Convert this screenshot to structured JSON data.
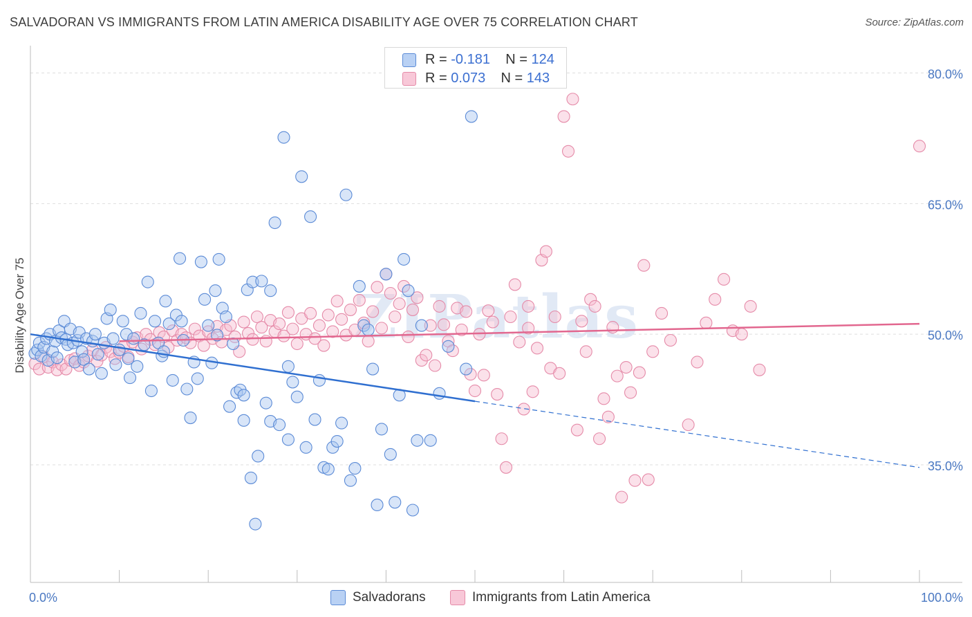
{
  "title": "SALVADORAN VS IMMIGRANTS FROM LATIN AMERICA DISABILITY AGE OVER 75 CORRELATION CHART",
  "source": "Source: ZipAtlas.com",
  "watermark": "ZIPatlas",
  "legend_top": {
    "rows": [
      {
        "r_label": "R = ",
        "r_value": "-0.181",
        "n_label": "N = ",
        "n_value": "124"
      },
      {
        "r_label": "R = ",
        "r_value": "0.073",
        "n_label": "N = ",
        "n_value": "143"
      }
    ]
  },
  "legend_bottom": [
    "Salvadorans",
    "Immigrants from Latin America"
  ],
  "colors": {
    "blue_fill": "#a9c6f0",
    "blue_stroke": "#5a8ad6",
    "blue_line": "#2f6fd0",
    "pink_fill": "#f6bcd0",
    "pink_stroke": "#e58aa8",
    "pink_line": "#e2678f",
    "grid": "#dddddd",
    "axis": "#bdbdbd",
    "tick_text": "#4a78c2"
  },
  "chart_data": {
    "type": "scatter",
    "title": "SALVADORAN VS IMMIGRANTS FROM LATIN AMERICA DISABILITY AGE OVER 75 CORRELATION CHART",
    "xlabel": "",
    "ylabel": "Disability Age Over 75",
    "xlim": [
      0,
      100
    ],
    "ylim": [
      21.5,
      82.5
    ],
    "x_tick_labels": [
      "0.0%",
      "100.0%"
    ],
    "y_ticks": [
      35,
      50,
      65,
      80
    ],
    "y_tick_labels": [
      "35.0%",
      "50.0%",
      "65.0%",
      "80.0%"
    ],
    "legend": [
      "Salvadorans",
      "Immigrants from Latin America"
    ],
    "series": [
      {
        "name": "Salvadorans",
        "R": -0.181,
        "N": 124,
        "trend": {
          "x_start": 0,
          "y_start": 50.0,
          "x_end": 50,
          "y_end": 42.3,
          "dashed_to_x": 100,
          "dashed_to_y": 34.7
        },
        "points": [
          [
            0.5,
            47.8
          ],
          [
            0.8,
            48.2
          ],
          [
            1.0,
            49.0
          ],
          [
            1.2,
            47.5
          ],
          [
            1.5,
            48.5
          ],
          [
            1.8,
            49.5
          ],
          [
            2.0,
            47.0
          ],
          [
            2.2,
            50.0
          ],
          [
            2.5,
            48.0
          ],
          [
            2.8,
            49.2
          ],
          [
            3.0,
            47.3
          ],
          [
            3.2,
            50.4
          ],
          [
            3.5,
            49.6
          ],
          [
            3.8,
            51.5
          ],
          [
            4.0,
            49.4
          ],
          [
            4.2,
            48.8
          ],
          [
            4.5,
            50.6
          ],
          [
            4.8,
            49.0
          ],
          [
            5.0,
            46.8
          ],
          [
            5.3,
            49.3
          ],
          [
            5.5,
            50.2
          ],
          [
            5.8,
            48.0
          ],
          [
            6.0,
            47.1
          ],
          [
            6.3,
            49.5
          ],
          [
            6.6,
            46.0
          ],
          [
            7.0,
            49.2
          ],
          [
            7.3,
            50.0
          ],
          [
            7.6,
            47.7
          ],
          [
            8.0,
            45.5
          ],
          [
            8.3,
            49.0
          ],
          [
            8.6,
            51.8
          ],
          [
            9.0,
            52.8
          ],
          [
            9.3,
            49.5
          ],
          [
            9.6,
            46.5
          ],
          [
            10.0,
            48.2
          ],
          [
            10.4,
            51.5
          ],
          [
            10.8,
            50.0
          ],
          [
            11.2,
            45.0
          ],
          [
            11.6,
            49.5
          ],
          [
            12.0,
            46.3
          ],
          [
            12.4,
            52.4
          ],
          [
            12.8,
            48.8
          ],
          [
            13.2,
            56.0
          ],
          [
            13.6,
            43.5
          ],
          [
            14.0,
            51.5
          ],
          [
            14.4,
            49.0
          ],
          [
            14.8,
            47.5
          ],
          [
            15.2,
            53.8
          ],
          [
            15.6,
            51.2
          ],
          [
            16.0,
            44.7
          ],
          [
            16.4,
            52.2
          ],
          [
            16.8,
            58.7
          ],
          [
            17.2,
            49.3
          ],
          [
            17.6,
            43.7
          ],
          [
            18.0,
            40.4
          ],
          [
            18.4,
            46.8
          ],
          [
            18.8,
            44.9
          ],
          [
            19.2,
            58.3
          ],
          [
            19.6,
            54.0
          ],
          [
            20.0,
            51.0
          ],
          [
            20.4,
            46.7
          ],
          [
            20.8,
            55.0
          ],
          [
            21.2,
            58.6
          ],
          [
            21.6,
            53.0
          ],
          [
            22.0,
            52.0
          ],
          [
            22.4,
            41.7
          ],
          [
            22.8,
            48.9
          ],
          [
            23.2,
            43.3
          ],
          [
            23.6,
            43.6
          ],
          [
            24.0,
            40.1
          ],
          [
            24.4,
            55.1
          ],
          [
            24.8,
            33.5
          ],
          [
            25.0,
            56.0
          ],
          [
            25.3,
            28.2
          ],
          [
            25.6,
            36.0
          ],
          [
            26.0,
            56.1
          ],
          [
            26.5,
            42.1
          ],
          [
            27.0,
            40.0
          ],
          [
            27.5,
            62.8
          ],
          [
            28.0,
            39.6
          ],
          [
            28.5,
            72.6
          ],
          [
            29.0,
            37.9
          ],
          [
            29.5,
            44.5
          ],
          [
            30.0,
            42.8
          ],
          [
            30.5,
            68.1
          ],
          [
            31.0,
            37.0
          ],
          [
            31.5,
            63.5
          ],
          [
            32.0,
            40.2
          ],
          [
            32.5,
            44.7
          ],
          [
            33.0,
            34.7
          ],
          [
            33.5,
            34.5
          ],
          [
            34.0,
            37.0
          ],
          [
            34.5,
            37.7
          ],
          [
            35.0,
            39.8
          ],
          [
            35.5,
            66.0
          ],
          [
            36.0,
            33.2
          ],
          [
            36.5,
            34.6
          ],
          [
            37.0,
            55.5
          ],
          [
            37.5,
            51.0
          ],
          [
            38.0,
            50.5
          ],
          [
            38.5,
            46.0
          ],
          [
            39.0,
            30.4
          ],
          [
            39.5,
            39.1
          ],
          [
            40.0,
            56.9
          ],
          [
            40.5,
            36.2
          ],
          [
            41.0,
            30.7
          ],
          [
            41.5,
            43.0
          ],
          [
            42.0,
            58.6
          ],
          [
            42.5,
            55.0
          ],
          [
            43.0,
            29.8
          ],
          [
            43.5,
            37.8
          ],
          [
            44.0,
            51.0
          ],
          [
            45.0,
            37.8
          ],
          [
            46.0,
            43.2
          ],
          [
            47.0,
            48.6
          ],
          [
            49.0,
            46.0
          ],
          [
            49.6,
            75.0
          ],
          [
            11.0,
            47.2
          ],
          [
            15.0,
            48.0
          ],
          [
            24.0,
            43.0
          ],
          [
            17.0,
            51.5
          ],
          [
            21.0,
            49.9
          ],
          [
            27.0,
            55.0
          ],
          [
            29.0,
            46.3
          ]
        ]
      },
      {
        "name": "Immigrants from Latin America",
        "R": 0.073,
        "N": 143,
        "trend": {
          "x_start": 10,
          "y_start": 49.2,
          "x_end": 100,
          "y_end": 51.2
        },
        "points": [
          [
            0.5,
            46.6
          ],
          [
            1.0,
            46.0
          ],
          [
            1.5,
            47.4
          ],
          [
            2.0,
            46.2
          ],
          [
            2.5,
            46.8
          ],
          [
            3.0,
            45.9
          ],
          [
            3.5,
            46.5
          ],
          [
            4.0,
            46.0
          ],
          [
            4.5,
            47.0
          ],
          [
            5.0,
            47.2
          ],
          [
            5.5,
            46.4
          ],
          [
            6.0,
            46.8
          ],
          [
            6.5,
            47.5
          ],
          [
            7.0,
            48.2
          ],
          [
            7.5,
            46.9
          ],
          [
            8.0,
            47.6
          ],
          [
            8.5,
            48.5
          ],
          [
            9.0,
            48.0
          ],
          [
            9.5,
            47.2
          ],
          [
            10.0,
            47.9
          ],
          [
            10.5,
            48.6
          ],
          [
            11.0,
            47.4
          ],
          [
            11.5,
            49.1
          ],
          [
            12.0,
            49.6
          ],
          [
            12.5,
            48.3
          ],
          [
            13.0,
            50.0
          ],
          [
            13.5,
            49.4
          ],
          [
            14.0,
            48.8
          ],
          [
            14.5,
            50.2
          ],
          [
            15.0,
            49.7
          ],
          [
            15.5,
            48.5
          ],
          [
            16.0,
            50.4
          ],
          [
            16.5,
            49.3
          ],
          [
            17.0,
            50.0
          ],
          [
            17.5,
            49.6
          ],
          [
            18.0,
            49.0
          ],
          [
            18.5,
            50.6
          ],
          [
            19.0,
            49.8
          ],
          [
            19.5,
            48.7
          ],
          [
            20.0,
            50.3
          ],
          [
            20.5,
            49.5
          ],
          [
            21.0,
            50.9
          ],
          [
            21.5,
            49.1
          ],
          [
            22.0,
            50.5
          ],
          [
            22.5,
            51.0
          ],
          [
            23.0,
            49.7
          ],
          [
            23.5,
            48.0
          ],
          [
            24.0,
            51.4
          ],
          [
            24.5,
            50.1
          ],
          [
            25.0,
            49.4
          ],
          [
            25.5,
            52.0
          ],
          [
            26.0,
            50.8
          ],
          [
            26.5,
            49.2
          ],
          [
            27.0,
            51.6
          ],
          [
            27.5,
            50.3
          ],
          [
            28.0,
            51.2
          ],
          [
            28.5,
            49.8
          ],
          [
            29.0,
            52.5
          ],
          [
            29.5,
            50.6
          ],
          [
            30.0,
            48.9
          ],
          [
            30.5,
            51.8
          ],
          [
            31.0,
            50.0
          ],
          [
            31.5,
            52.4
          ],
          [
            32.0,
            49.5
          ],
          [
            32.5,
            51.0
          ],
          [
            33.0,
            48.7
          ],
          [
            33.5,
            52.2
          ],
          [
            34.0,
            50.3
          ],
          [
            34.5,
            53.8
          ],
          [
            35.0,
            51.7
          ],
          [
            35.5,
            49.9
          ],
          [
            36.0,
            52.8
          ],
          [
            36.5,
            50.5
          ],
          [
            37.0,
            53.9
          ],
          [
            37.5,
            51.3
          ],
          [
            38.0,
            49.2
          ],
          [
            38.5,
            52.6
          ],
          [
            39.0,
            55.4
          ],
          [
            39.5,
            50.7
          ],
          [
            40.0,
            56.9
          ],
          [
            40.5,
            54.7
          ],
          [
            41.0,
            52.0
          ],
          [
            41.5,
            53.5
          ],
          [
            42.0,
            55.5
          ],
          [
            42.5,
            49.7
          ],
          [
            43.0,
            52.8
          ],
          [
            43.5,
            54.2
          ],
          [
            44.0,
            47.0
          ],
          [
            44.5,
            47.6
          ],
          [
            45.0,
            51.0
          ],
          [
            45.5,
            46.4
          ],
          [
            46.0,
            53.2
          ],
          [
            46.5,
            51.1
          ],
          [
            47.0,
            49.2
          ],
          [
            47.5,
            48.1
          ],
          [
            48.0,
            53.0
          ],
          [
            48.5,
            50.5
          ],
          [
            49.0,
            52.6
          ],
          [
            49.5,
            45.4
          ],
          [
            50.0,
            43.5
          ],
          [
            50.5,
            50.0
          ],
          [
            51.0,
            45.3
          ],
          [
            51.5,
            52.7
          ],
          [
            52.0,
            51.4
          ],
          [
            52.5,
            43.1
          ],
          [
            53.0,
            38.0
          ],
          [
            53.5,
            34.7
          ],
          [
            54.0,
            52.0
          ],
          [
            54.5,
            55.7
          ],
          [
            55.0,
            49.1
          ],
          [
            55.5,
            41.4
          ],
          [
            56.0,
            53.2
          ],
          [
            56.5,
            43.4
          ],
          [
            57.0,
            48.4
          ],
          [
            57.5,
            58.5
          ],
          [
            58.0,
            59.5
          ],
          [
            58.5,
            46.1
          ],
          [
            59.0,
            52.0
          ],
          [
            59.5,
            45.5
          ],
          [
            60.0,
            75.0
          ],
          [
            60.5,
            71.0
          ],
          [
            61.0,
            77.0
          ],
          [
            61.5,
            39.0
          ],
          [
            62.0,
            51.5
          ],
          [
            62.5,
            48.0
          ],
          [
            63.0,
            54.0
          ],
          [
            63.5,
            53.2
          ],
          [
            64.0,
            38.0
          ],
          [
            64.5,
            42.6
          ],
          [
            65.0,
            40.5
          ],
          [
            65.5,
            50.8
          ],
          [
            66.0,
            45.2
          ],
          [
            66.5,
            31.3
          ],
          [
            67.0,
            46.2
          ],
          [
            67.5,
            43.3
          ],
          [
            68.0,
            33.2
          ],
          [
            68.5,
            45.6
          ],
          [
            69.0,
            57.9
          ],
          [
            69.5,
            33.3
          ],
          [
            70.0,
            48.0
          ],
          [
            71.0,
            52.4
          ],
          [
            72.0,
            49.3
          ],
          [
            74.0,
            39.6
          ],
          [
            75.0,
            46.8
          ],
          [
            76.0,
            51.3
          ],
          [
            77.0,
            54.0
          ],
          [
            78.0,
            56.3
          ],
          [
            79.0,
            50.4
          ],
          [
            80.0,
            50.0
          ],
          [
            81.0,
            53.2
          ],
          [
            82.0,
            45.9
          ],
          [
            56.0,
            50.7
          ],
          [
            100.0,
            71.6
          ]
        ]
      }
    ]
  }
}
